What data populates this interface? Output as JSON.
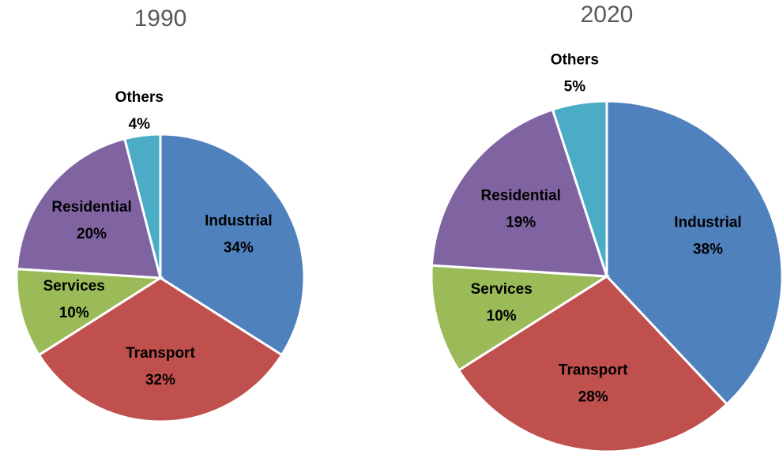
{
  "chart_data": [
    {
      "type": "pie",
      "title": "1990",
      "categories": [
        "Industrial",
        "Transport",
        "Services",
        "Residential",
        "Others"
      ],
      "values": [
        34,
        32,
        10,
        20,
        4
      ],
      "value_labels": [
        "34%",
        "32%",
        "10%",
        "20%",
        "4%"
      ],
      "colors": [
        "#4f81bd",
        "#c0504d",
        "#9bbb59",
        "#8064a2",
        "#4bacc6"
      ]
    },
    {
      "type": "pie",
      "title": "2020",
      "categories": [
        "Industrial",
        "Transport",
        "Services",
        "Residential",
        "Others"
      ],
      "values": [
        38,
        28,
        10,
        19,
        5
      ],
      "value_labels": [
        "38%",
        "28%",
        "10%",
        "19%",
        "5%"
      ],
      "colors": [
        "#4f81bd",
        "#c0504d",
        "#9bbb59",
        "#8064a2",
        "#4bacc6"
      ]
    }
  ]
}
